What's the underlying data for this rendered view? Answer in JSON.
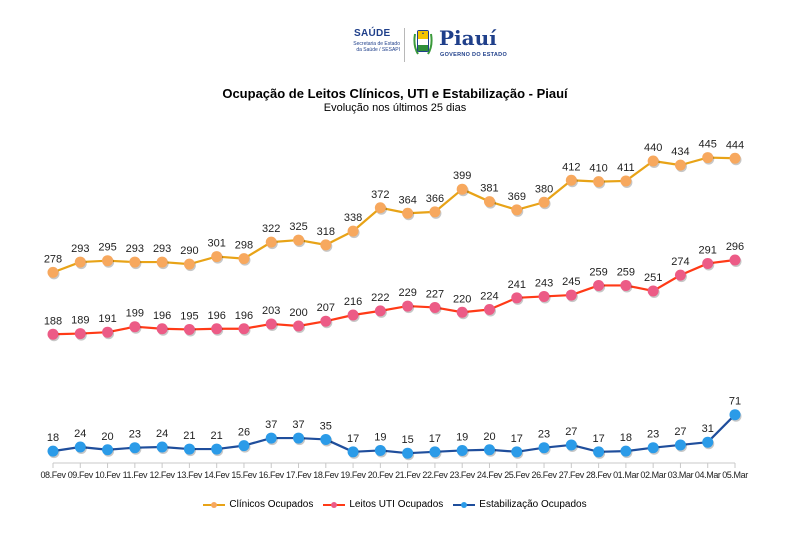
{
  "header": {
    "logo": {
      "saude": "SAÚDE",
      "secretaria_line1": "Secretaria de Estado",
      "secretaria_line2": "da Saúde / SESAPI",
      "state_name": "Piauí",
      "government": "GOVERNO DO ESTADO"
    }
  },
  "chart_data": {
    "type": "line",
    "title": "Ocupação de Leitos Clínicos, UTI e Estabilização - Piauí",
    "subtitle": "Evolução nos últimos 25 dias",
    "xlabel": "",
    "ylabel": "",
    "ylim": [
      0,
      450
    ],
    "grid": false,
    "y_axis_visible": false,
    "legend_position": "bottom",
    "categories": [
      "08.Fev",
      "09.Fev",
      "10.Fev",
      "11.Fev",
      "12.Fev",
      "13.Fev",
      "14.Fev",
      "15.Fev",
      "16.Fev",
      "17.Fev",
      "18.Fev",
      "19.Fev",
      "20.Fev",
      "21.Fev",
      "22.Fev",
      "23.Fev",
      "24.Fev",
      "25.Fev",
      "26.Fev",
      "27.Fev",
      "28.Fev",
      "01.Mar",
      "02.Mar",
      "03.Mar",
      "04.Mar",
      "05.Mar"
    ],
    "series": [
      {
        "name": "Clínicos Ocupados",
        "line_color": "#e8a317",
        "marker_color": "#f7a85e",
        "values": [
          278,
          293,
          295,
          293,
          293,
          290,
          301,
          298,
          322,
          325,
          318,
          338,
          372,
          364,
          366,
          399,
          381,
          369,
          380,
          412,
          410,
          411,
          440,
          434,
          445,
          444
        ]
      },
      {
        "name": "Leitos UTI Ocupados",
        "line_color": "#ff3a17",
        "marker_color": "#ec5b86",
        "values": [
          188,
          189,
          191,
          199,
          196,
          195,
          196,
          196,
          203,
          200,
          207,
          216,
          222,
          229,
          227,
          220,
          224,
          241,
          243,
          245,
          259,
          259,
          251,
          274,
          291,
          296
        ]
      },
      {
        "name": "Estabilização Ocupados",
        "line_color": "#1f4e9c",
        "marker_color": "#2b9be8",
        "values": [
          18,
          24,
          20,
          23,
          24,
          21,
          21,
          26,
          37,
          37,
          35,
          17,
          19,
          15,
          17,
          19,
          20,
          17,
          23,
          27,
          17,
          18,
          23,
          27,
          31,
          71
        ]
      }
    ]
  }
}
